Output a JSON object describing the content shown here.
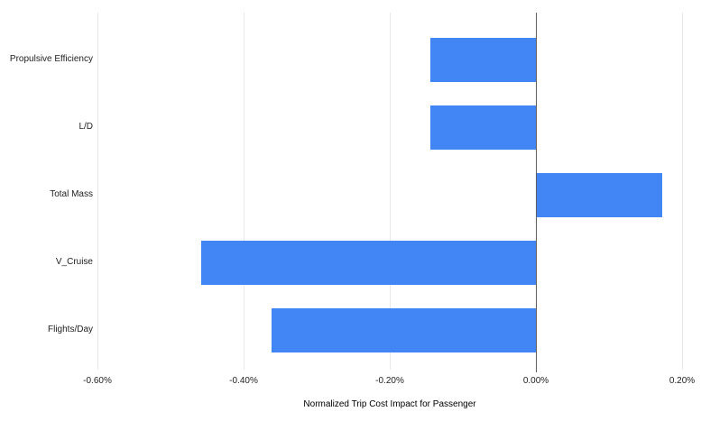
{
  "chart_data": {
    "type": "bar",
    "orientation": "horizontal",
    "title": "",
    "xlabel": "Normalized Trip Cost Impact for Passenger",
    "ylabel": "",
    "categories": [
      "Propulsive Efficiency",
      "L/D",
      "Total Mass",
      "V_Cruise",
      "Flights/Day"
    ],
    "values": [
      -0.144,
      -0.145,
      0.172,
      -0.458,
      -0.362
    ],
    "value_unit": "percent",
    "xlim": [
      -0.6,
      0.2
    ],
    "x_ticks": [
      -0.6,
      -0.4,
      -0.2,
      0,
      0.2
    ],
    "x_tick_labels": [
      "-0.60%",
      "-0.40%",
      "-0.20%",
      "0.00%",
      "0.20%"
    ],
    "grid": true,
    "legend_position": "none",
    "colors": {
      "bar": "#4285f4",
      "gridline": "#e8e8e8",
      "baseline": "#5f5f5f",
      "label_text": "#222222",
      "axis_title_text": "#000000",
      "background": "#ffffff"
    }
  }
}
